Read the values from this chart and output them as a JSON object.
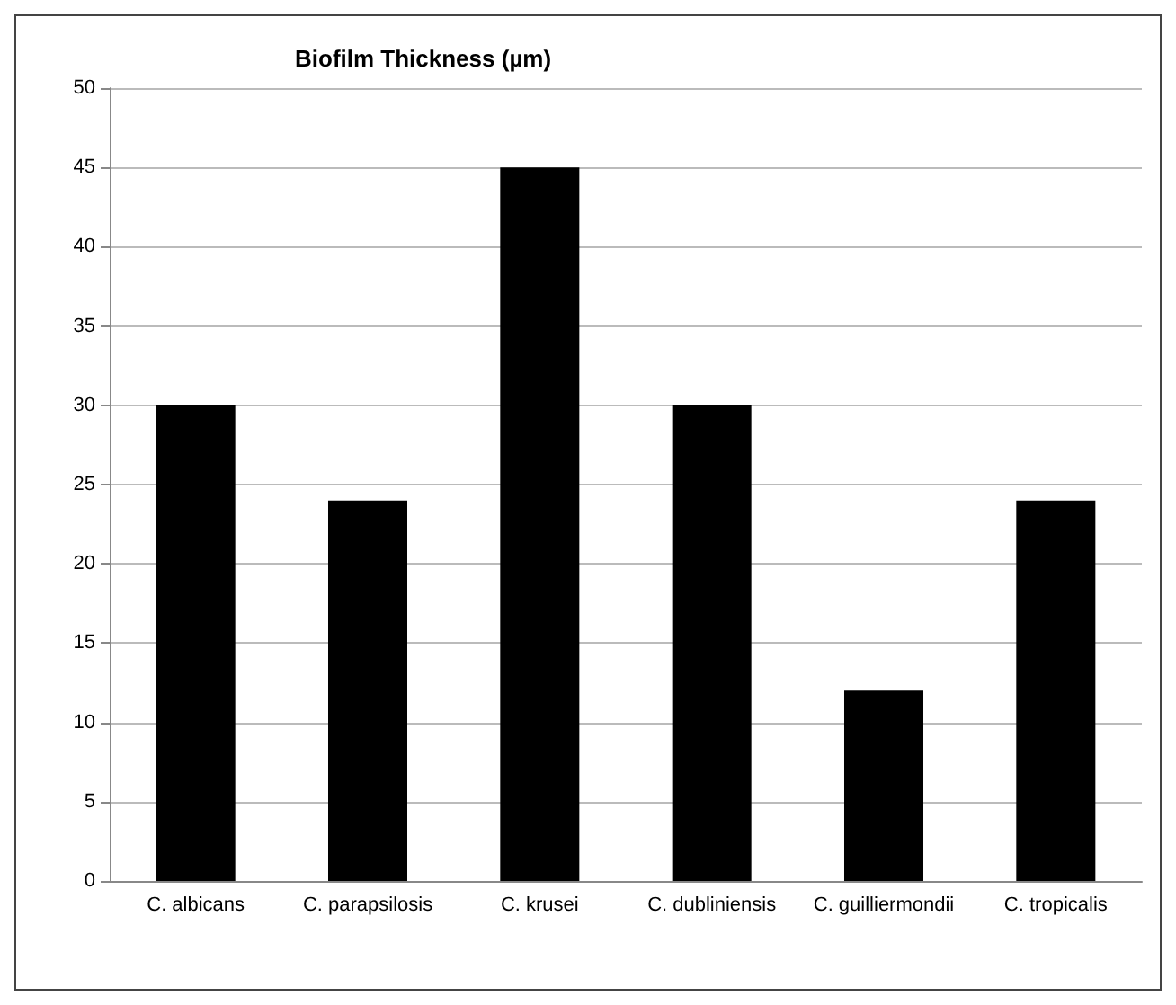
{
  "chart_data": {
    "type": "bar",
    "title": "Biofilm Thickness (µm)",
    "categories": [
      "C. albicans",
      "C. parapsilosis",
      "C. krusei",
      "C. dubliniensis",
      "C. guilliermondii",
      "C. tropicalis"
    ],
    "values": [
      30,
      24,
      45,
      30,
      12,
      24
    ],
    "color": "#000000",
    "ylim": [
      0,
      50
    ],
    "yticks": [
      0,
      5,
      10,
      15,
      20,
      25,
      30,
      35,
      40,
      45,
      50
    ],
    "grid": "y"
  }
}
